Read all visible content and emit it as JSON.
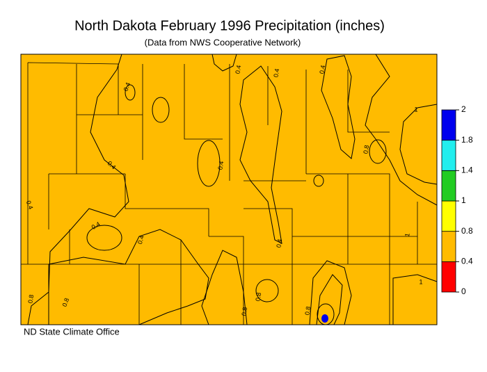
{
  "title": "North Dakota February 1996 Precipitation (inches)",
  "subtitle": "(Data from NWS Cooperative Network)",
  "credit": "ND State Climate Office",
  "legend": {
    "ticks": [
      0,
      0.4,
      0.8,
      1,
      1.4,
      1.8,
      2
    ],
    "colors": [
      "#ff0000",
      "#ffbb00",
      "#ffff00",
      "#22cc22",
      "#22eeee",
      "#0000ee"
    ]
  },
  "contour_labels": [
    "0.4",
    "0.4",
    "0.4",
    "0.4",
    "0.4",
    "0.4",
    "0.4",
    "0.4",
    "0.4",
    "0.4",
    "0.8",
    "0.8",
    "0.8",
    "0.8",
    "0.8",
    "0.8",
    "1",
    "1",
    "1"
  ]
}
